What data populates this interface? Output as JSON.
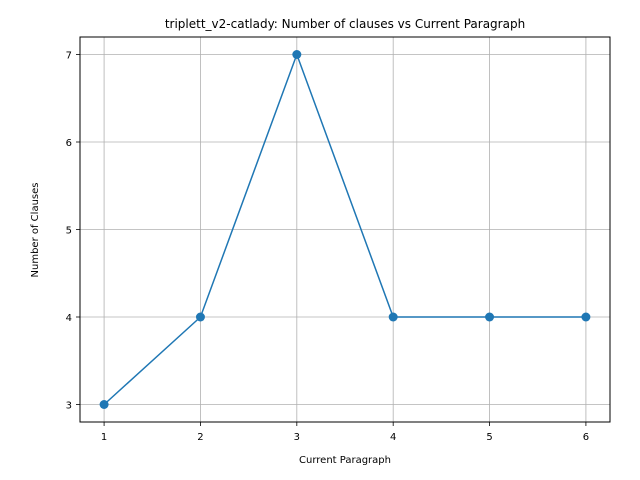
{
  "chart_data": {
    "type": "line",
    "title": "triplett_v2-catlady: Number of clauses vs Current Paragraph",
    "xlabel": "Current Paragraph",
    "ylabel": "Number of Clauses",
    "x": [
      1,
      2,
      3,
      4,
      5,
      6
    ],
    "series": [
      {
        "values": [
          3,
          4,
          7,
          4,
          4,
          4
        ]
      }
    ],
    "xticks": [
      "1",
      "2",
      "3",
      "4",
      "5",
      "6"
    ],
    "yticks": [
      "3",
      "4",
      "5",
      "6",
      "7"
    ],
    "xlim": [
      0.75,
      6.25
    ],
    "ylim": [
      2.8,
      7.2
    ],
    "grid": true,
    "color": "#1f77b4",
    "marker": "circle"
  }
}
